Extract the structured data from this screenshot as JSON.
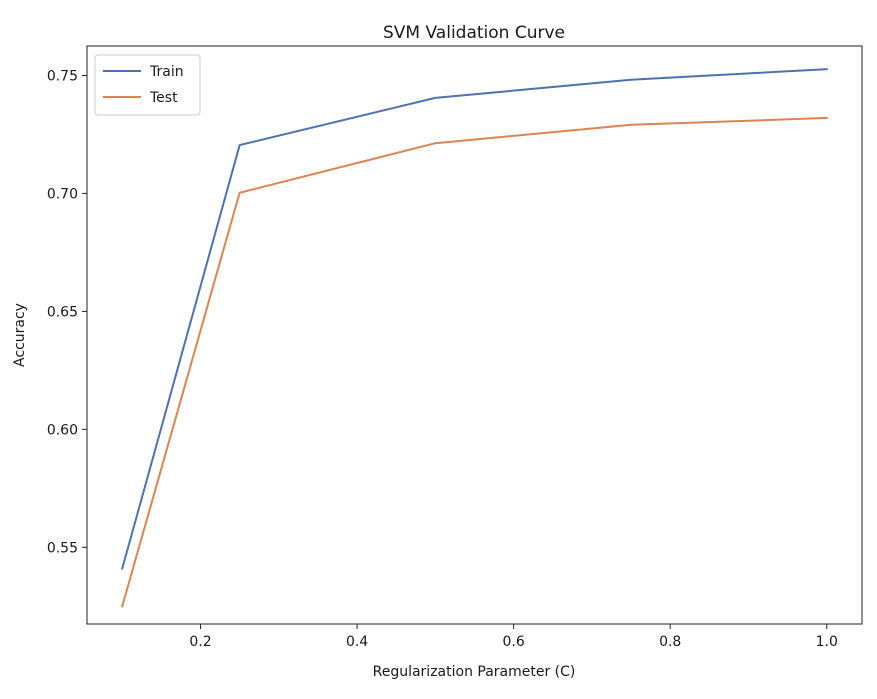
{
  "chart_data": {
    "type": "line",
    "title": "SVM Validation Curve",
    "xlabel": "Regularization Parameter (C)",
    "ylabel": "Accuracy",
    "x": [
      0.1,
      0.25,
      0.5,
      0.75,
      1.0
    ],
    "series": [
      {
        "name": "Train",
        "color": "#4c72b0",
        "values": [
          0.541,
          0.7205,
          0.7405,
          0.7482,
          0.7527
        ]
      },
      {
        "name": "Test",
        "color": "#dd8452",
        "values": [
          0.525,
          0.7003,
          0.7213,
          0.7291,
          0.732
        ]
      }
    ],
    "xlim": [
      0.055,
      1.045
    ],
    "ylim": [
      0.5175,
      0.7625
    ],
    "xticks": [
      0.2,
      0.4,
      0.6,
      0.8,
      1.0
    ],
    "xtick_labels": [
      "0.2",
      "0.4",
      "0.6",
      "0.8",
      "1.0"
    ],
    "yticks": [
      0.55,
      0.6,
      0.65,
      0.7,
      0.75
    ],
    "ytick_labels": [
      "0.55",
      "0.60",
      "0.65",
      "0.70",
      "0.75"
    ],
    "grid": false,
    "legend_position": "top-left"
  }
}
